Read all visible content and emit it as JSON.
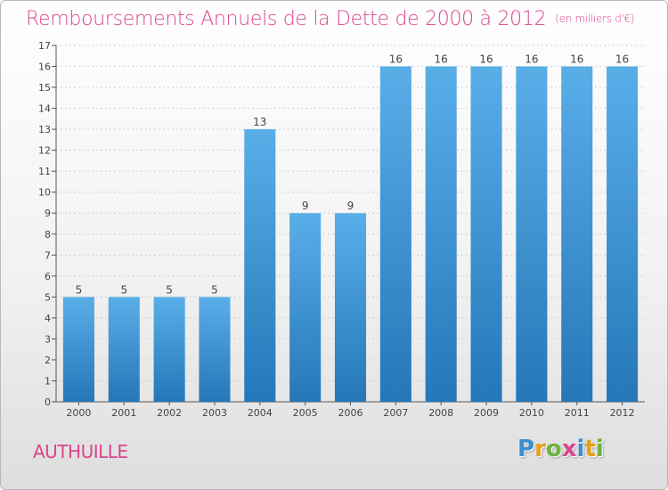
{
  "title": "Remboursements Annuels de la Dette de 2000 à 2012",
  "unit_note": "(en milliers d'€)",
  "commune": "AUTHUILLE",
  "logo": {
    "letters": [
      "P",
      "r",
      "o",
      "x",
      "i",
      "t",
      "i"
    ],
    "colors": [
      "#3b8ed0",
      "#e4a11b",
      "#6cb33f",
      "#d9468c",
      "#3b8ed0",
      "#e4a11b",
      "#6cb33f"
    ]
  },
  "colors": {
    "bar_top": "#5aaee8",
    "bar_bottom": "#2577b8",
    "title": "#d9468c",
    "grid": "#cfcfcf"
  },
  "chart_data": {
    "type": "bar",
    "categories": [
      "2000",
      "2001",
      "2002",
      "2003",
      "2004",
      "2005",
      "2006",
      "2007",
      "2008",
      "2009",
      "2010",
      "2011",
      "2012"
    ],
    "values": [
      5,
      5,
      5,
      5,
      13,
      9,
      9,
      16,
      16,
      16,
      16,
      16,
      16
    ],
    "value_labels": [
      "5",
      "5",
      "5",
      "5",
      "13",
      "9",
      "9",
      "16",
      "16",
      "16",
      "16",
      "16",
      "16"
    ],
    "yticks": [
      "0",
      "1",
      "2",
      "3",
      "4",
      "5",
      "6",
      "7",
      "8",
      "9",
      "10",
      "11",
      "12",
      "13",
      "14",
      "15",
      "16",
      "17"
    ],
    "ylim": [
      0,
      17
    ],
    "grid": true
  }
}
